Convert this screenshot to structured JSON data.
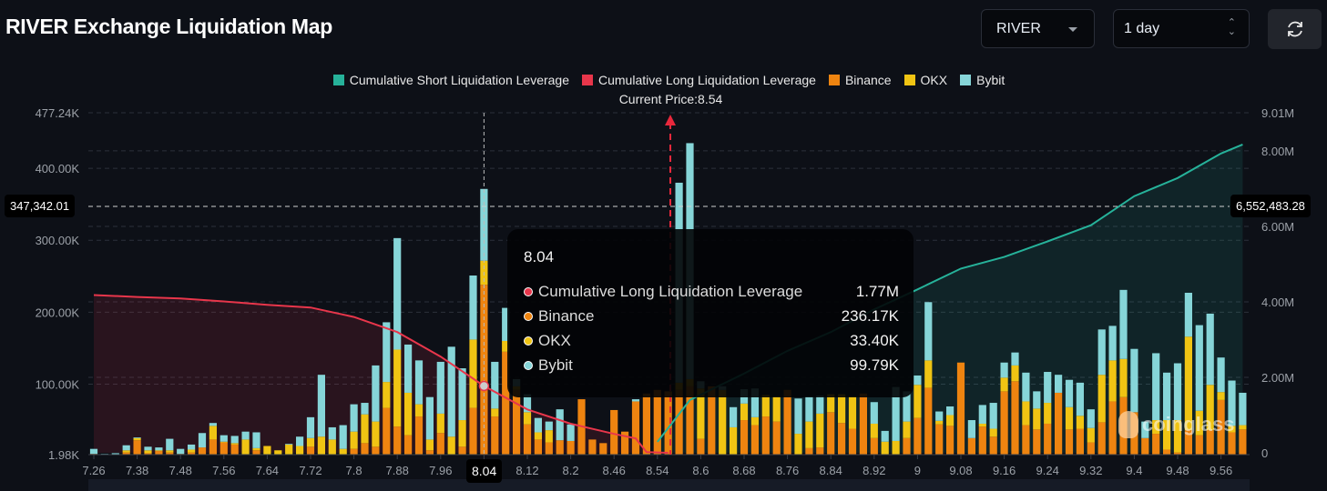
{
  "header": {
    "title": "RIVER Exchange Liquidation Map",
    "symbol_select": "RIVER",
    "period_select": "1 day",
    "refresh_icon": "refresh-icon"
  },
  "legend": [
    {
      "label": "Cumulative Short Liquidation Leverage",
      "color": "#26b29a"
    },
    {
      "label": "Cumulative Long Liquidation Leverage",
      "color": "#e8364b"
    },
    {
      "label": "Binance",
      "color": "#ee8410"
    },
    {
      "label": "OKX",
      "color": "#f0c413"
    },
    {
      "label": "Bybit",
      "color": "#86d5d8"
    }
  ],
  "current_price_label": "Current Price:8.54",
  "crosshair": {
    "left_value": "347,342.01",
    "right_value": "6,552,483.28",
    "x_label": "8.04"
  },
  "tooltip": {
    "title": "8.04",
    "rows": [
      {
        "label": "Cumulative Long Liquidation Leverage",
        "value": "1.77M",
        "color": "#e8364b"
      },
      {
        "label": "Binance",
        "value": "236.17K",
        "color": "#ee8410"
      },
      {
        "label": "OKX",
        "value": "33.40K",
        "color": "#f0c413"
      },
      {
        "label": "Bybit",
        "value": "99.79K",
        "color": "#86d5d8"
      }
    ]
  },
  "watermark": "coinglass",
  "chart_data": {
    "type": "bar",
    "stacked": true,
    "grid": true,
    "legend_position": "top-center",
    "x_tick_labels": [
      "7.26",
      "7.38",
      "7.48",
      "7.56",
      "7.64",
      "7.72",
      "7.8",
      "7.88",
      "7.96",
      "8.04",
      "8.12",
      "8.2",
      "8.46",
      "8.54",
      "8.6",
      "8.68",
      "8.76",
      "8.84",
      "8.92",
      "9",
      "9.08",
      "9.16",
      "9.24",
      "9.32",
      "9.4",
      "9.48",
      "9.56"
    ],
    "x_tick_every_n_bars": 4,
    "y_left": {
      "ticks": [
        "1.98K",
        "100.00K",
        "200.00K",
        "300.00K",
        "400.00K",
        "477.24K"
      ],
      "range_k": [
        1.98,
        477.24
      ]
    },
    "y_right": {
      "ticks": [
        "0",
        "2.00M",
        "4.00M",
        "6.00M",
        "8.00M",
        "9.01M"
      ],
      "range_m": [
        0,
        9.01
      ]
    },
    "series": [
      {
        "name": "Binance",
        "unit": "K",
        "axis": "left",
        "values": [
          1,
          0.5,
          0.5,
          3,
          20,
          2,
          5,
          3,
          1,
          3,
          10,
          21,
          17,
          14,
          0,
          6,
          0,
          0,
          0,
          0,
          11,
          0,
          0,
          0,
          8,
          16,
          11,
          65,
          39,
          27,
          53,
          6,
          30,
          0,
          11,
          65,
          236.17,
          53,
          143,
          90,
          42,
          21,
          17,
          20,
          19,
          77,
          21,
          16,
          62,
          32,
          74,
          85,
          90,
          88,
          90,
          95,
          22,
          95,
          0,
          0,
          48,
          41,
          53,
          46,
          90,
          0,
          9,
          10,
          59,
          44,
          36,
          85,
          23,
          0,
          0,
          23,
          51,
          93,
          42,
          40,
          128,
          23,
          39,
          25,
          88,
          102,
          41,
          35,
          43,
          86,
          35,
          36,
          17,
          45,
          74,
          80,
          59,
          23,
          29,
          7,
          3,
          34,
          27,
          34,
          76,
          31,
          35
        ]
      },
      {
        "name": "OKX",
        "unit": "K",
        "axis": "left",
        "values": [
          0,
          0,
          0,
          3,
          3,
          4,
          1,
          3,
          0,
          4,
          0,
          19,
          1,
          2,
          21,
          3,
          12,
          6,
          14,
          12,
          12,
          25,
          21,
          8,
          24,
          40,
          35,
          36,
          107,
          59,
          17,
          15,
          27,
          25,
          37,
          95,
          33.4,
          11,
          15,
          5,
          17,
          10,
          17,
          0,
          0,
          0,
          0,
          0,
          0,
          0,
          0,
          0,
          0,
          0,
          10,
          10,
          70,
          0,
          90,
          38,
          23,
          11,
          30,
          35,
          0,
          29,
          37,
          47,
          25,
          40,
          45,
          0,
          20,
          18,
          19,
          23,
          46,
          38,
          5,
          15,
          0,
          0,
          4,
          11,
          19,
          22,
          33,
          29,
          29,
          0,
          31,
          18,
          20,
          66,
          57,
          53,
          0,
          0,
          19,
          41,
          45,
          130,
          34,
          63,
          11,
          9,
          6
        ]
      },
      {
        "name": "Bybit",
        "unit": "K",
        "axis": "left",
        "values": [
          7,
          0.5,
          1.5,
          7,
          1,
          5,
          4,
          16,
          7,
          7,
          20,
          4,
          9,
          10,
          11,
          22,
          0,
          0,
          1,
          13,
          29,
          86,
          17,
          33,
          38,
          16,
          78,
          83,
          155,
          67,
          61,
          59,
          72,
          125,
          72,
          89,
          99.79,
          65,
          46,
          10,
          25,
          20,
          12,
          43,
          23,
          0,
          0,
          0,
          0,
          0,
          3,
          0,
          0,
          0,
          278,
          328,
          10,
          0,
          5,
          28,
          20,
          40,
          0,
          0,
          0,
          49,
          35,
          25,
          0,
          0,
          0,
          0,
          30,
          15,
          75,
          42,
          13,
          81,
          13,
          12,
          0,
          25,
          26,
          36,
          21,
          18,
          40,
          24,
          43,
          25,
          38,
          46,
          26,
          63,
          48,
          96,
          88,
          23,
          93,
          66,
          79,
          61,
          119,
          99,
          48,
          63,
          45
        ]
      },
      {
        "name": "Cumulative Long Liquidation Leverage",
        "unit": "M",
        "axis": "right",
        "type": "line",
        "points": [
          [
            0,
            4.18
          ],
          [
            4,
            4.13
          ],
          [
            8,
            4.09
          ],
          [
            12,
            4.01
          ],
          [
            16,
            3.92
          ],
          [
            20,
            3.85
          ],
          [
            24,
            3.6
          ],
          [
            28,
            3.2
          ],
          [
            32,
            2.55
          ],
          [
            36,
            1.77
          ],
          [
            40,
            1.15
          ],
          [
            44,
            0.77
          ],
          [
            48,
            0.5
          ],
          [
            50,
            0.38
          ],
          [
            51,
            0.02
          ],
          [
            53,
            0
          ]
        ]
      },
      {
        "name": "Cumulative Short Liquidation Leverage",
        "unit": "M",
        "axis": "right",
        "type": "line",
        "points": [
          [
            52,
            0.29
          ],
          [
            55,
            1.4
          ],
          [
            60,
            2.1
          ],
          [
            64,
            2.7
          ],
          [
            68,
            3.2
          ],
          [
            72,
            3.8
          ],
          [
            76,
            4.33
          ],
          [
            80,
            4.88
          ],
          [
            84,
            5.19
          ],
          [
            88,
            5.6
          ],
          [
            92,
            6.03
          ],
          [
            96,
            6.8
          ],
          [
            100,
            7.28
          ],
          [
            104,
            7.93
          ],
          [
            106,
            8.17
          ]
        ]
      }
    ],
    "highlighted_x": "8.04",
    "current_price": 8.54
  }
}
